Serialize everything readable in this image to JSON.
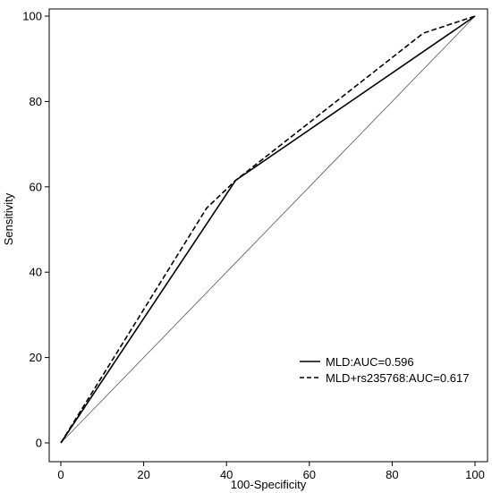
{
  "chart_data": {
    "type": "line",
    "xlabel": "100-Specificity",
    "ylabel": "Sensitivity",
    "xlim": [
      0,
      100
    ],
    "ylim": [
      0,
      100
    ],
    "x_ticks": [
      0,
      20,
      40,
      60,
      80,
      100
    ],
    "y_ticks": [
      0,
      20,
      40,
      60,
      80,
      100
    ],
    "grid": false,
    "legend_position": "bottom-right",
    "series": [
      {
        "name": "MLD:AUC=0.596",
        "style": "solid",
        "x": [
          0,
          42.2,
          100
        ],
        "y": [
          0,
          61.5,
          100
        ]
      },
      {
        "name": "MLD+rs235768:AUC=0.617",
        "style": "dashed",
        "x": [
          0,
          35.2,
          42.2,
          87.5,
          100
        ],
        "y": [
          0,
          55.0,
          61.5,
          96.0,
          100
        ]
      }
    ],
    "reference_line": {
      "x": [
        0,
        100
      ],
      "y": [
        0,
        100
      ]
    }
  }
}
